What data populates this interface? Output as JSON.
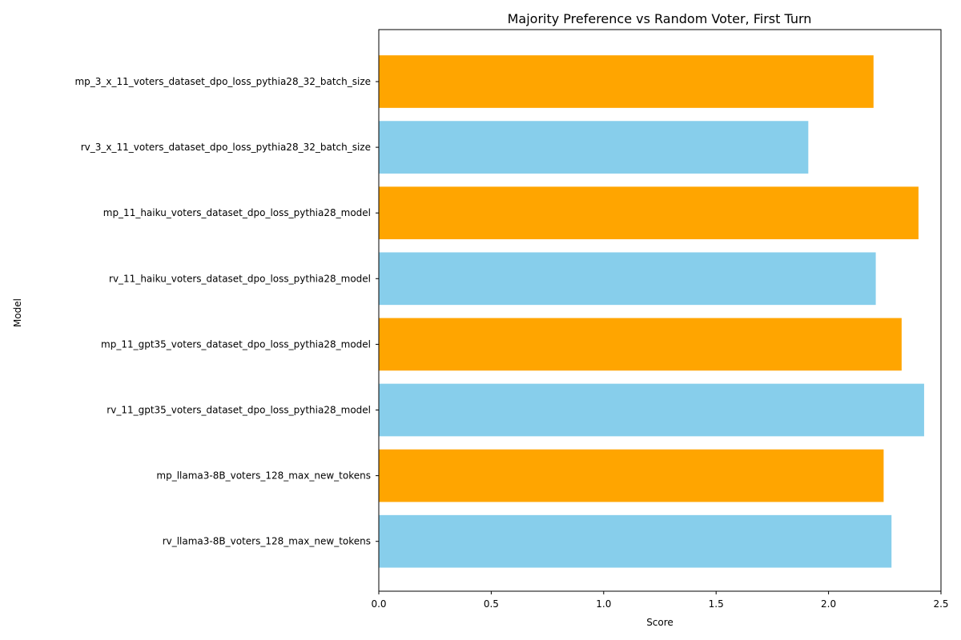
{
  "chart_data": {
    "type": "bar",
    "orientation": "horizontal",
    "title": "Majority Preference vs Random Voter, First Turn",
    "xlabel": "Score",
    "ylabel": "Model",
    "xlim": [
      0,
      2.5
    ],
    "xticks": [
      "0.0",
      "0.5",
      "1.0",
      "1.5",
      "2.0",
      "2.5"
    ],
    "grid": false,
    "colors": {
      "mp": "#FFA500",
      "rv": "#87CEEB"
    },
    "bars": [
      {
        "category": "mp_3_x_11_voters_dataset_dpo_loss_pythia28_32_batch_size",
        "value": 2.2,
        "group": "mp"
      },
      {
        "category": "rv_3_x_11_voters_dataset_dpo_loss_pythia28_32_batch_size",
        "value": 1.91,
        "group": "rv"
      },
      {
        "category": "mp_11_haiku_voters_dataset_dpo_loss_pythia28_model",
        "value": 2.4,
        "group": "mp"
      },
      {
        "category": "rv_11_haiku_voters_dataset_dpo_loss_pythia28_model",
        "value": 2.21,
        "group": "rv"
      },
      {
        "category": "mp_11_gpt35_voters_dataset_dpo_loss_pythia28_model",
        "value": 2.325,
        "group": "mp"
      },
      {
        "category": "rv_11_gpt35_voters_dataset_dpo_loss_pythia28_model",
        "value": 2.425,
        "group": "rv"
      },
      {
        "category": "mp_llama3-8B_voters_128_max_new_tokens",
        "value": 2.245,
        "group": "mp"
      },
      {
        "category": "rv_llama3-8B_voters_128_max_new_tokens",
        "value": 2.28,
        "group": "rv"
      }
    ]
  }
}
